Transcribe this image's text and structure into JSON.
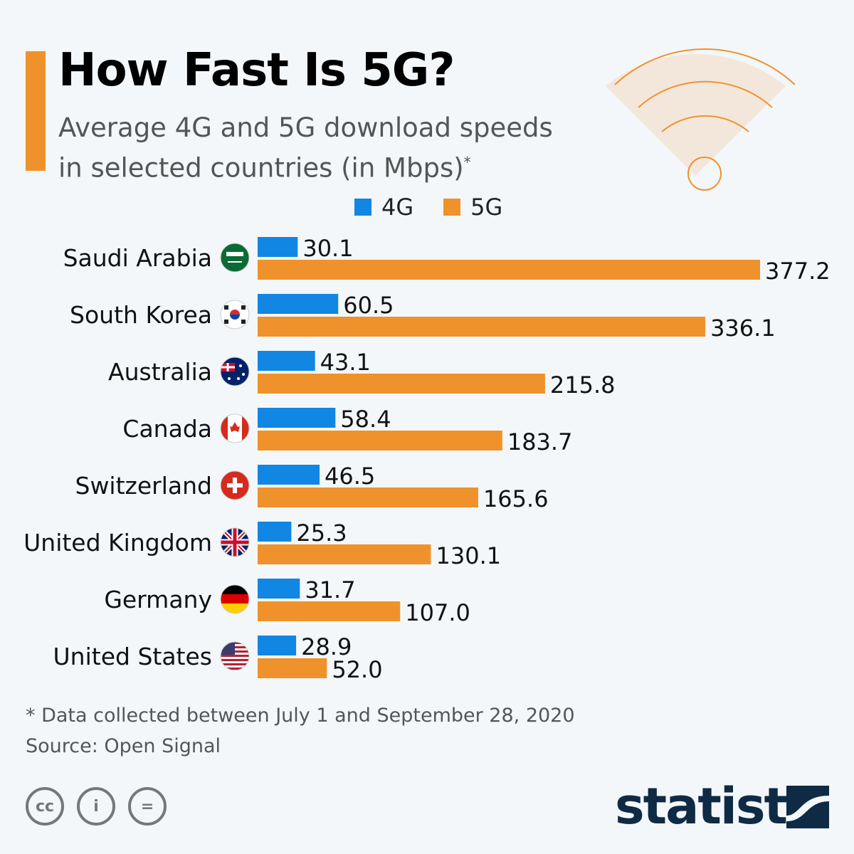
{
  "header": {
    "title": "How Fast Is 5G?",
    "subtitle_line1": "Average 4G and 5G download speeds",
    "subtitle_line2": "in selected countries (in Mbps)",
    "subtitle_mark": "*"
  },
  "footer": {
    "note": "* Data collected between July 1 and September 28, 2020",
    "source": "Source: Open Signal",
    "cc": "cc",
    "by": "i",
    "nd": "=",
    "brand": "statista"
  },
  "colors": {
    "4G": "#1186e3",
    "5G": "#f0922b",
    "accent": "#f0922b",
    "brand": "#0f2a44"
  },
  "chart_data": {
    "type": "bar",
    "orientation": "horizontal",
    "title": "How Fast Is 5G?",
    "categories": [
      "Saudi Arabia",
      "South Korea",
      "Australia",
      "Canada",
      "Switzerland",
      "United Kingdom",
      "Germany",
      "United States"
    ],
    "flags": [
      "sa",
      "kr",
      "au",
      "ca",
      "ch",
      "gb",
      "de",
      "us"
    ],
    "series": [
      {
        "name": "4G",
        "values": [
          30.1,
          60.5,
          43.1,
          58.4,
          46.5,
          25.3,
          31.7,
          28.9
        ],
        "labels": [
          "30.1",
          "60.5",
          "43.1",
          "58.4",
          "46.5",
          "25.3",
          "31.7",
          "28.9"
        ]
      },
      {
        "name": "5G",
        "values": [
          377.2,
          336.1,
          215.8,
          183.7,
          165.6,
          130.1,
          107.0,
          52.0
        ],
        "labels": [
          "377.2",
          "336.1",
          "215.8",
          "183.7",
          "165.6",
          "130.1",
          "107.0",
          "52.0"
        ]
      }
    ],
    "legend_position": "top",
    "xlim": [
      0,
      377.2
    ],
    "grid": false
  }
}
